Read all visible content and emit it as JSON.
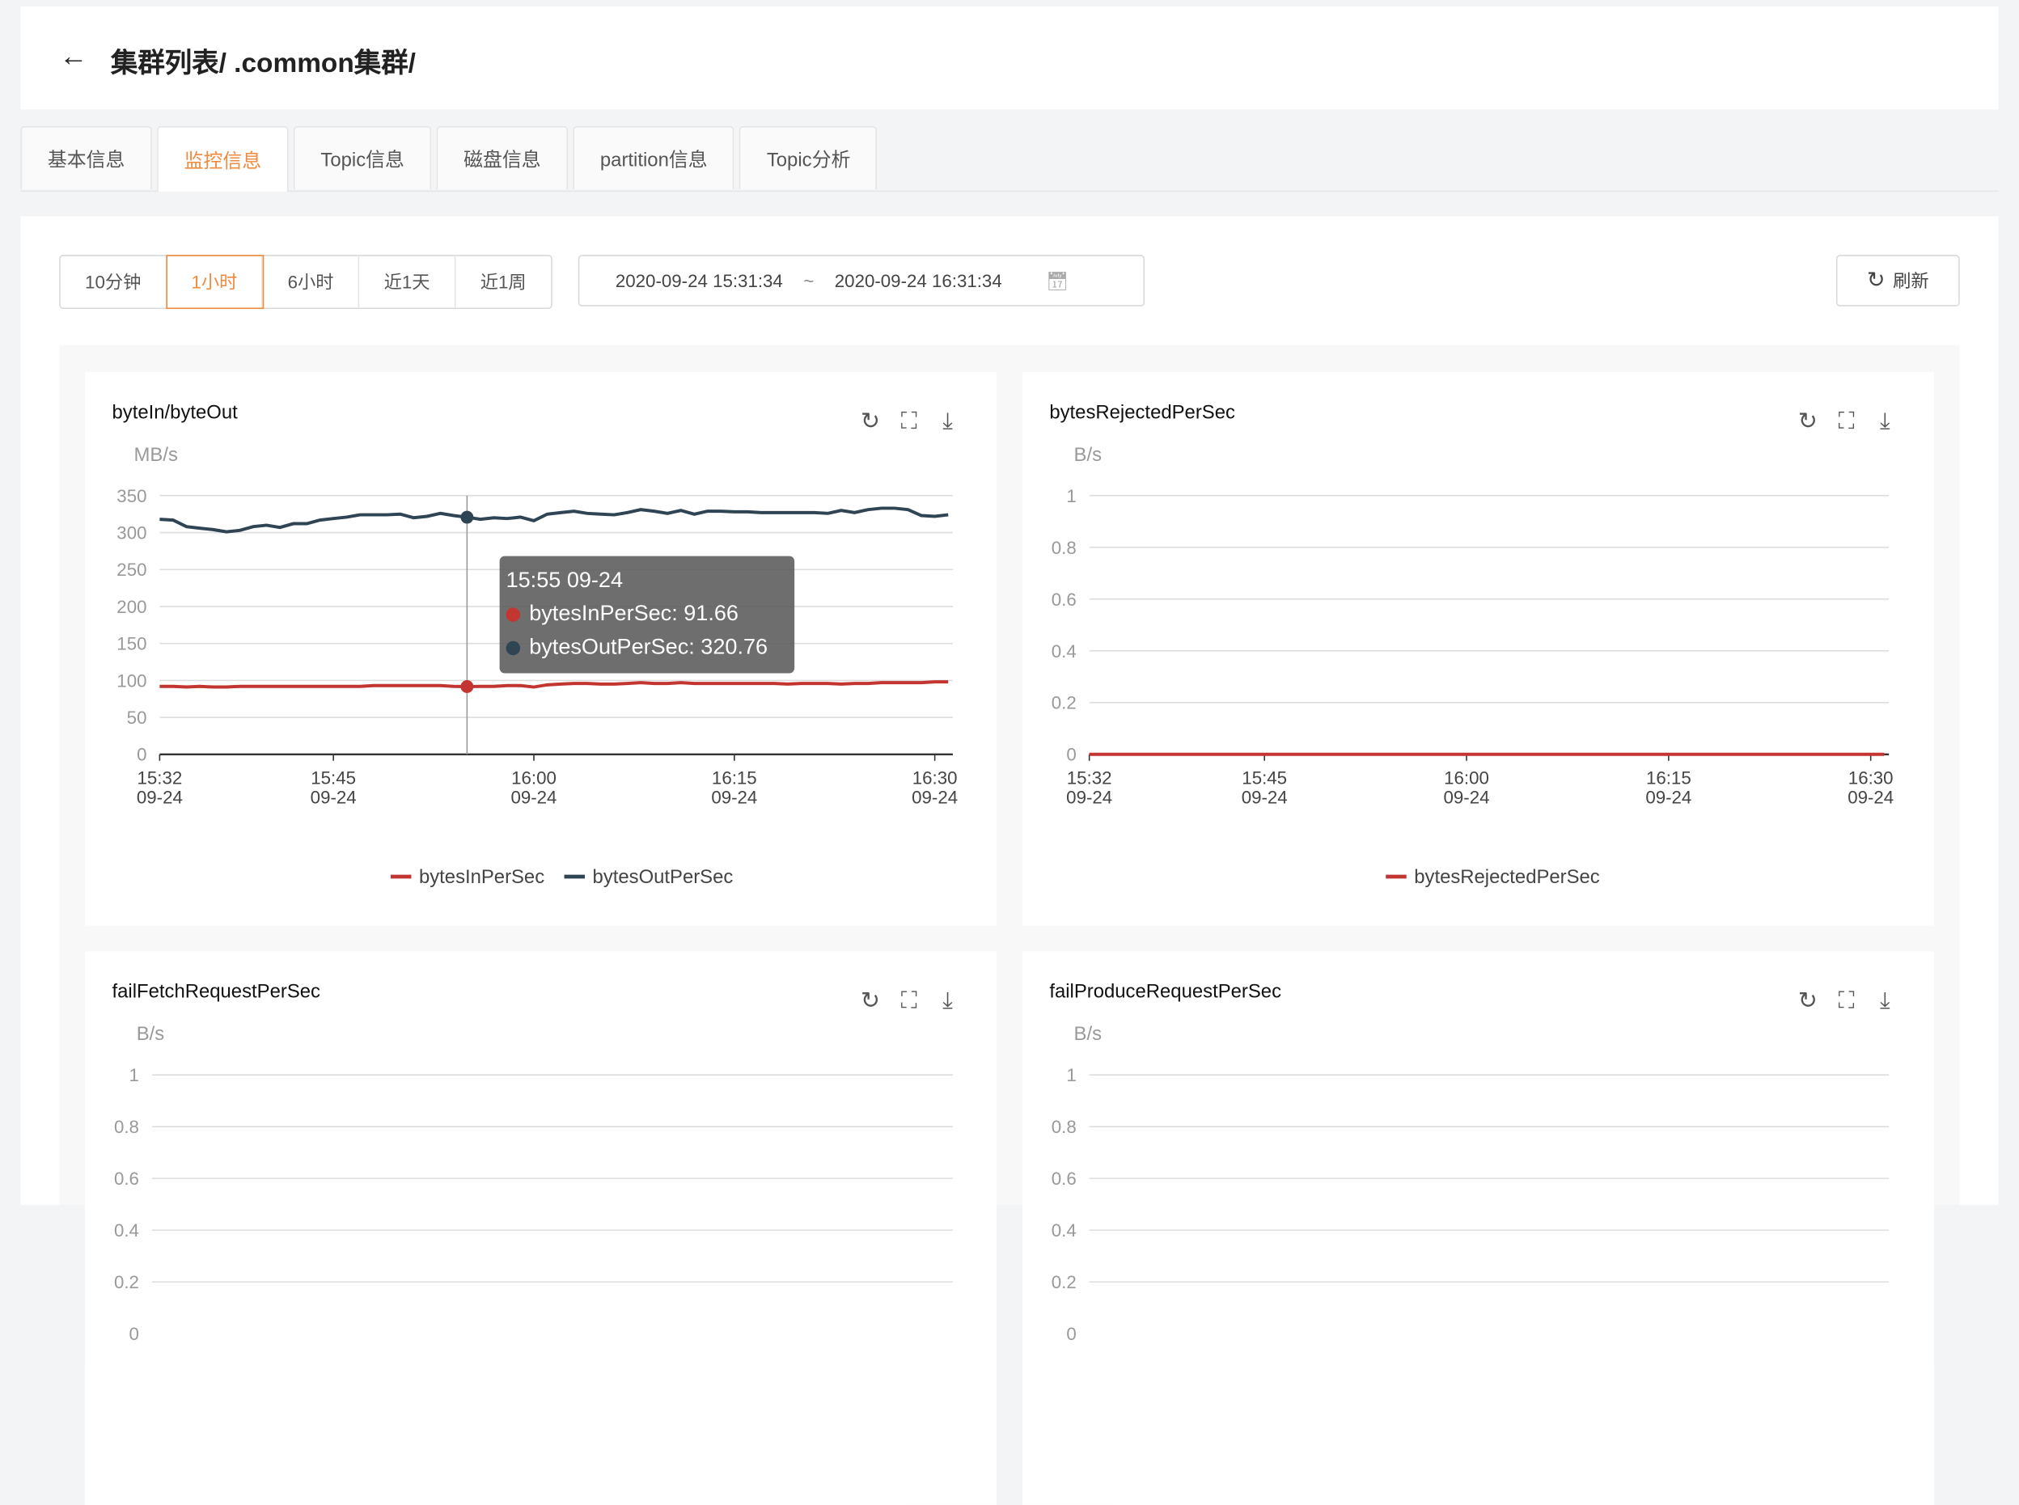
{
  "header": {
    "back_icon": "arrow-left-icon",
    "breadcrumb": "集群列表/      .common集群/"
  },
  "tabs": [
    {
      "label": "基本信息"
    },
    {
      "label": "监控信息",
      "active": true
    },
    {
      "label": "Topic信息"
    },
    {
      "label": "磁盘信息"
    },
    {
      "label": "partition信息"
    },
    {
      "label": "Topic分析"
    }
  ],
  "toolbar": {
    "ranges": [
      {
        "label": "10分钟"
      },
      {
        "label": "1小时",
        "active": true
      },
      {
        "label": "6小时"
      },
      {
        "label": "近1天"
      },
      {
        "label": "近1周"
      }
    ],
    "date_start": "2020-09-24 15:31:34",
    "date_sep": "~",
    "date_end": "2020-09-24 16:31:34",
    "calendar_icon": "calendar-icon",
    "refresh_label": "刷新",
    "refresh_icon": "refresh-icon"
  },
  "colors": {
    "accent": "#f08a3c",
    "bytesIn": "#c23531",
    "bytesOut": "#2f4554"
  },
  "tooltip": {
    "title": "15:55 09-24",
    "rows": [
      "bytesInPerSec: 91.66",
      "bytesOutPerSec: 320.76"
    ]
  },
  "chart_data": [
    {
      "type": "line",
      "title": "byteIn/byteOut",
      "ylabel": "MB/s",
      "ylim": [
        0,
        350
      ],
      "yticks": [
        "0",
        "50",
        "100",
        "150",
        "200",
        "250",
        "300",
        "350"
      ],
      "xticks": [
        "15:32",
        "15:45",
        "16:00",
        "16:15",
        "16:30"
      ],
      "xtick_date": "09-24",
      "x_start": "15:32",
      "grid": true,
      "legend": "bottom",
      "series": [
        {
          "name": "bytesInPerSec",
          "color": "#c23531",
          "values": [
            92,
            92,
            91,
            92,
            91,
            91,
            92,
            92,
            92,
            92,
            92,
            92,
            92,
            92,
            92,
            92,
            93,
            93,
            93,
            93,
            93,
            93,
            92,
            91.66,
            92,
            92,
            93,
            93,
            91,
            94,
            95,
            96,
            96,
            95,
            95,
            96,
            97,
            96,
            96,
            97,
            96,
            96,
            96,
            96,
            96,
            96,
            96,
            95,
            96,
            96,
            96,
            95,
            96,
            96,
            97,
            97,
            97,
            97,
            98,
            98
          ]
        },
        {
          "name": "bytesOutPerSec",
          "color": "#2f4554",
          "values": [
            318,
            317,
            308,
            306,
            304,
            301,
            303,
            308,
            310,
            307,
            312,
            312,
            317,
            319,
            321,
            324,
            324,
            324,
            325,
            320,
            322,
            326,
            323,
            320.76,
            318,
            320,
            319,
            321,
            316,
            325,
            327,
            329,
            326,
            325,
            324,
            327,
            331,
            329,
            326,
            330,
            325,
            329,
            329,
            328,
            328,
            327,
            327,
            327,
            327,
            327,
            326,
            330,
            327,
            331,
            333,
            333,
            331,
            323,
            322,
            324
          ]
        }
      ],
      "highlight": "15:55"
    },
    {
      "type": "line",
      "title": "bytesRejectedPerSec",
      "ylabel": "B/s",
      "ylim": [
        0,
        1
      ],
      "yticks": [
        "0",
        "0.2",
        "0.4",
        "0.6",
        "0.8",
        "1"
      ],
      "xticks": [
        "15:32",
        "15:45",
        "16:00",
        "16:15",
        "16:30"
      ],
      "xtick_date": "09-24",
      "x_start": "15:32",
      "grid": true,
      "legend": "bottom",
      "series": [
        {
          "name": "bytesRejectedPerSec",
          "color": "#c23531",
          "values": [
            0,
            0,
            0,
            0,
            0,
            0,
            0,
            0,
            0,
            0,
            0,
            0,
            0,
            0,
            0,
            0,
            0,
            0,
            0,
            0,
            0,
            0,
            0,
            0,
            0,
            0,
            0,
            0,
            0,
            0,
            0,
            0,
            0,
            0,
            0,
            0,
            0,
            0,
            0,
            0,
            0,
            0,
            0,
            0,
            0,
            0,
            0,
            0,
            0,
            0,
            0,
            0,
            0,
            0,
            0,
            0,
            0,
            0,
            0,
            0
          ]
        }
      ]
    },
    {
      "type": "line",
      "title": "failFetchRequestPerSec",
      "ylabel": "B/s",
      "ylim": [
        0,
        1
      ],
      "yticks": [
        "0",
        "0.2",
        "0.4",
        "0.6",
        "0.8",
        "1"
      ],
      "xticks": [],
      "grid": true,
      "series": []
    },
    {
      "type": "line",
      "title": "failProduceRequestPerSec",
      "ylabel": "B/s",
      "ylim": [
        0,
        1
      ],
      "yticks": [
        "0",
        "0.2",
        "0.4",
        "0.6",
        "0.8",
        "1"
      ],
      "xticks": [],
      "grid": true,
      "series": []
    }
  ],
  "card_icons": [
    "refresh-icon",
    "fullscreen-icon",
    "download-icon"
  ]
}
